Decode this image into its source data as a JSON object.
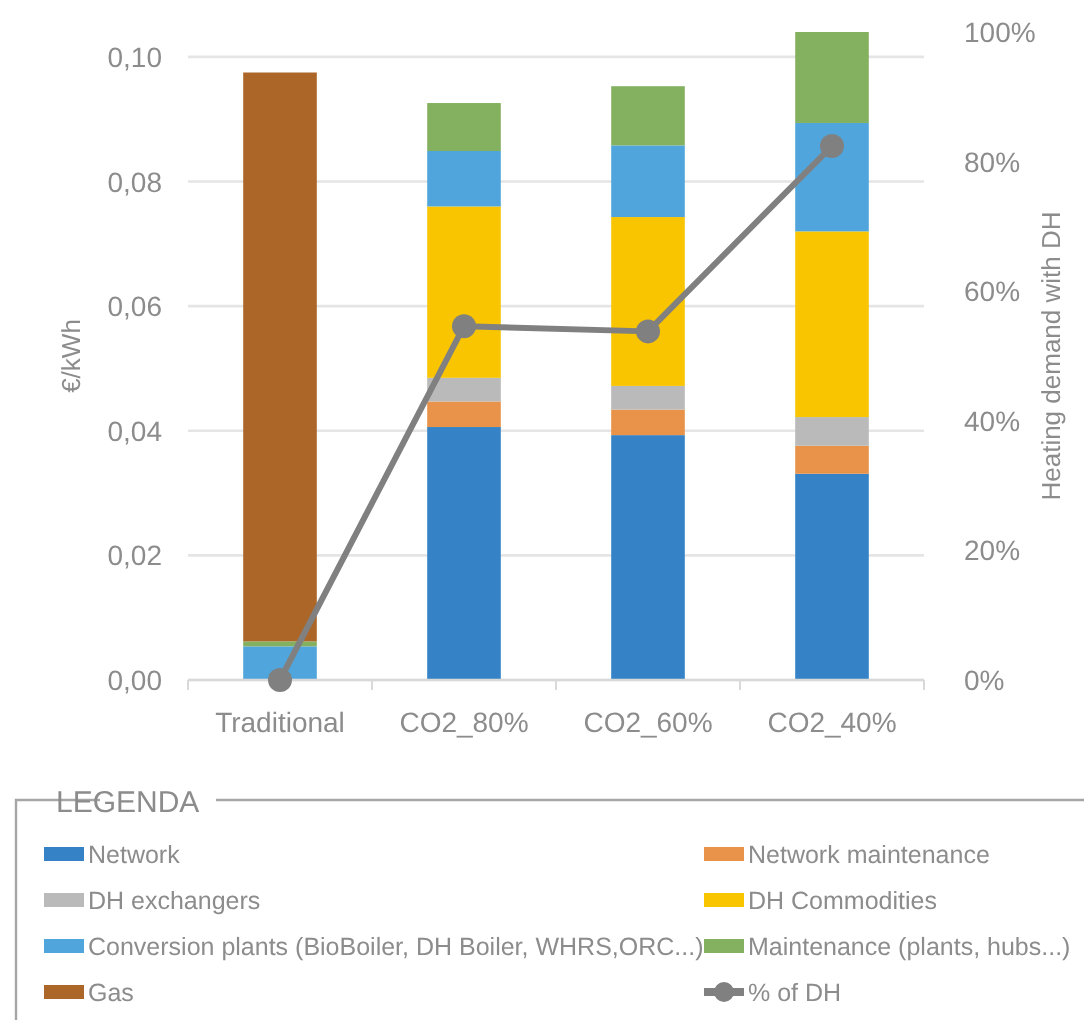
{
  "chart_data": {
    "type": "bar",
    "stacked": true,
    "ylabel": "€/kWh",
    "y2label": "Heating demand with DH",
    "legend_title": "LEGENDA",
    "legend": "bottom",
    "grid": "y",
    "categories": [
      "Traditional",
      "CO2_80%",
      "CO2_60%",
      "CO2_40%"
    ],
    "ylim": [
      0,
      0.104
    ],
    "yticks": [
      {
        "value": 0,
        "label": "0,00"
      },
      {
        "value": 0.02,
        "label": "0,02"
      },
      {
        "value": 0.04,
        "label": "0,04"
      },
      {
        "value": 0.06,
        "label": "0,06"
      },
      {
        "value": 0.08,
        "label": "0,08"
      },
      {
        "value": 0.1,
        "label": "0,10"
      }
    ],
    "y2lim": [
      0,
      100
    ],
    "y2ticks": [
      {
        "value": 0,
        "label": "0%"
      },
      {
        "value": 20,
        "label": "20%"
      },
      {
        "value": 40,
        "label": "40%"
      },
      {
        "value": 60,
        "label": "60%"
      },
      {
        "value": 80,
        "label": "80%"
      },
      {
        "value": 100,
        "label": "100%"
      }
    ],
    "series": [
      {
        "name": "Network",
        "color": "#3583c6",
        "values": [
          0,
          0.0406,
          0.0393,
          0.0331
        ]
      },
      {
        "name": "Network maintenance",
        "color": "#e8924a",
        "values": [
          0,
          0.0041,
          0.0041,
          0.0045
        ]
      },
      {
        "name": "DH exchangers",
        "color": "#bababa",
        "values": [
          0,
          0.0038,
          0.0038,
          0.0046
        ]
      },
      {
        "name": "DH Commodities",
        "color": "#f9c400",
        "values": [
          0,
          0.0275,
          0.0271,
          0.0298
        ]
      },
      {
        "name": "Conversion plants (BioBoiler, DH Boiler, WHRS,ORC...)",
        "color": "#50a6dc",
        "values": [
          0.0054,
          0.0089,
          0.0115,
          0.0174
        ]
      },
      {
        "name": "Maintenance (plants, hubs...)",
        "color": "#84b160",
        "values": [
          0.0008,
          0.0077,
          0.0095,
          0.0146
        ]
      },
      {
        "name": "Gas",
        "color": "#ab6628",
        "values": [
          0.0913,
          0,
          0,
          0
        ]
      },
      {
        "name": "% of DH",
        "type": "line",
        "axis": "y2",
        "color": "#808080",
        "marker": "circle",
        "values": [
          0,
          54.6,
          53.8,
          82.4
        ]
      }
    ]
  }
}
